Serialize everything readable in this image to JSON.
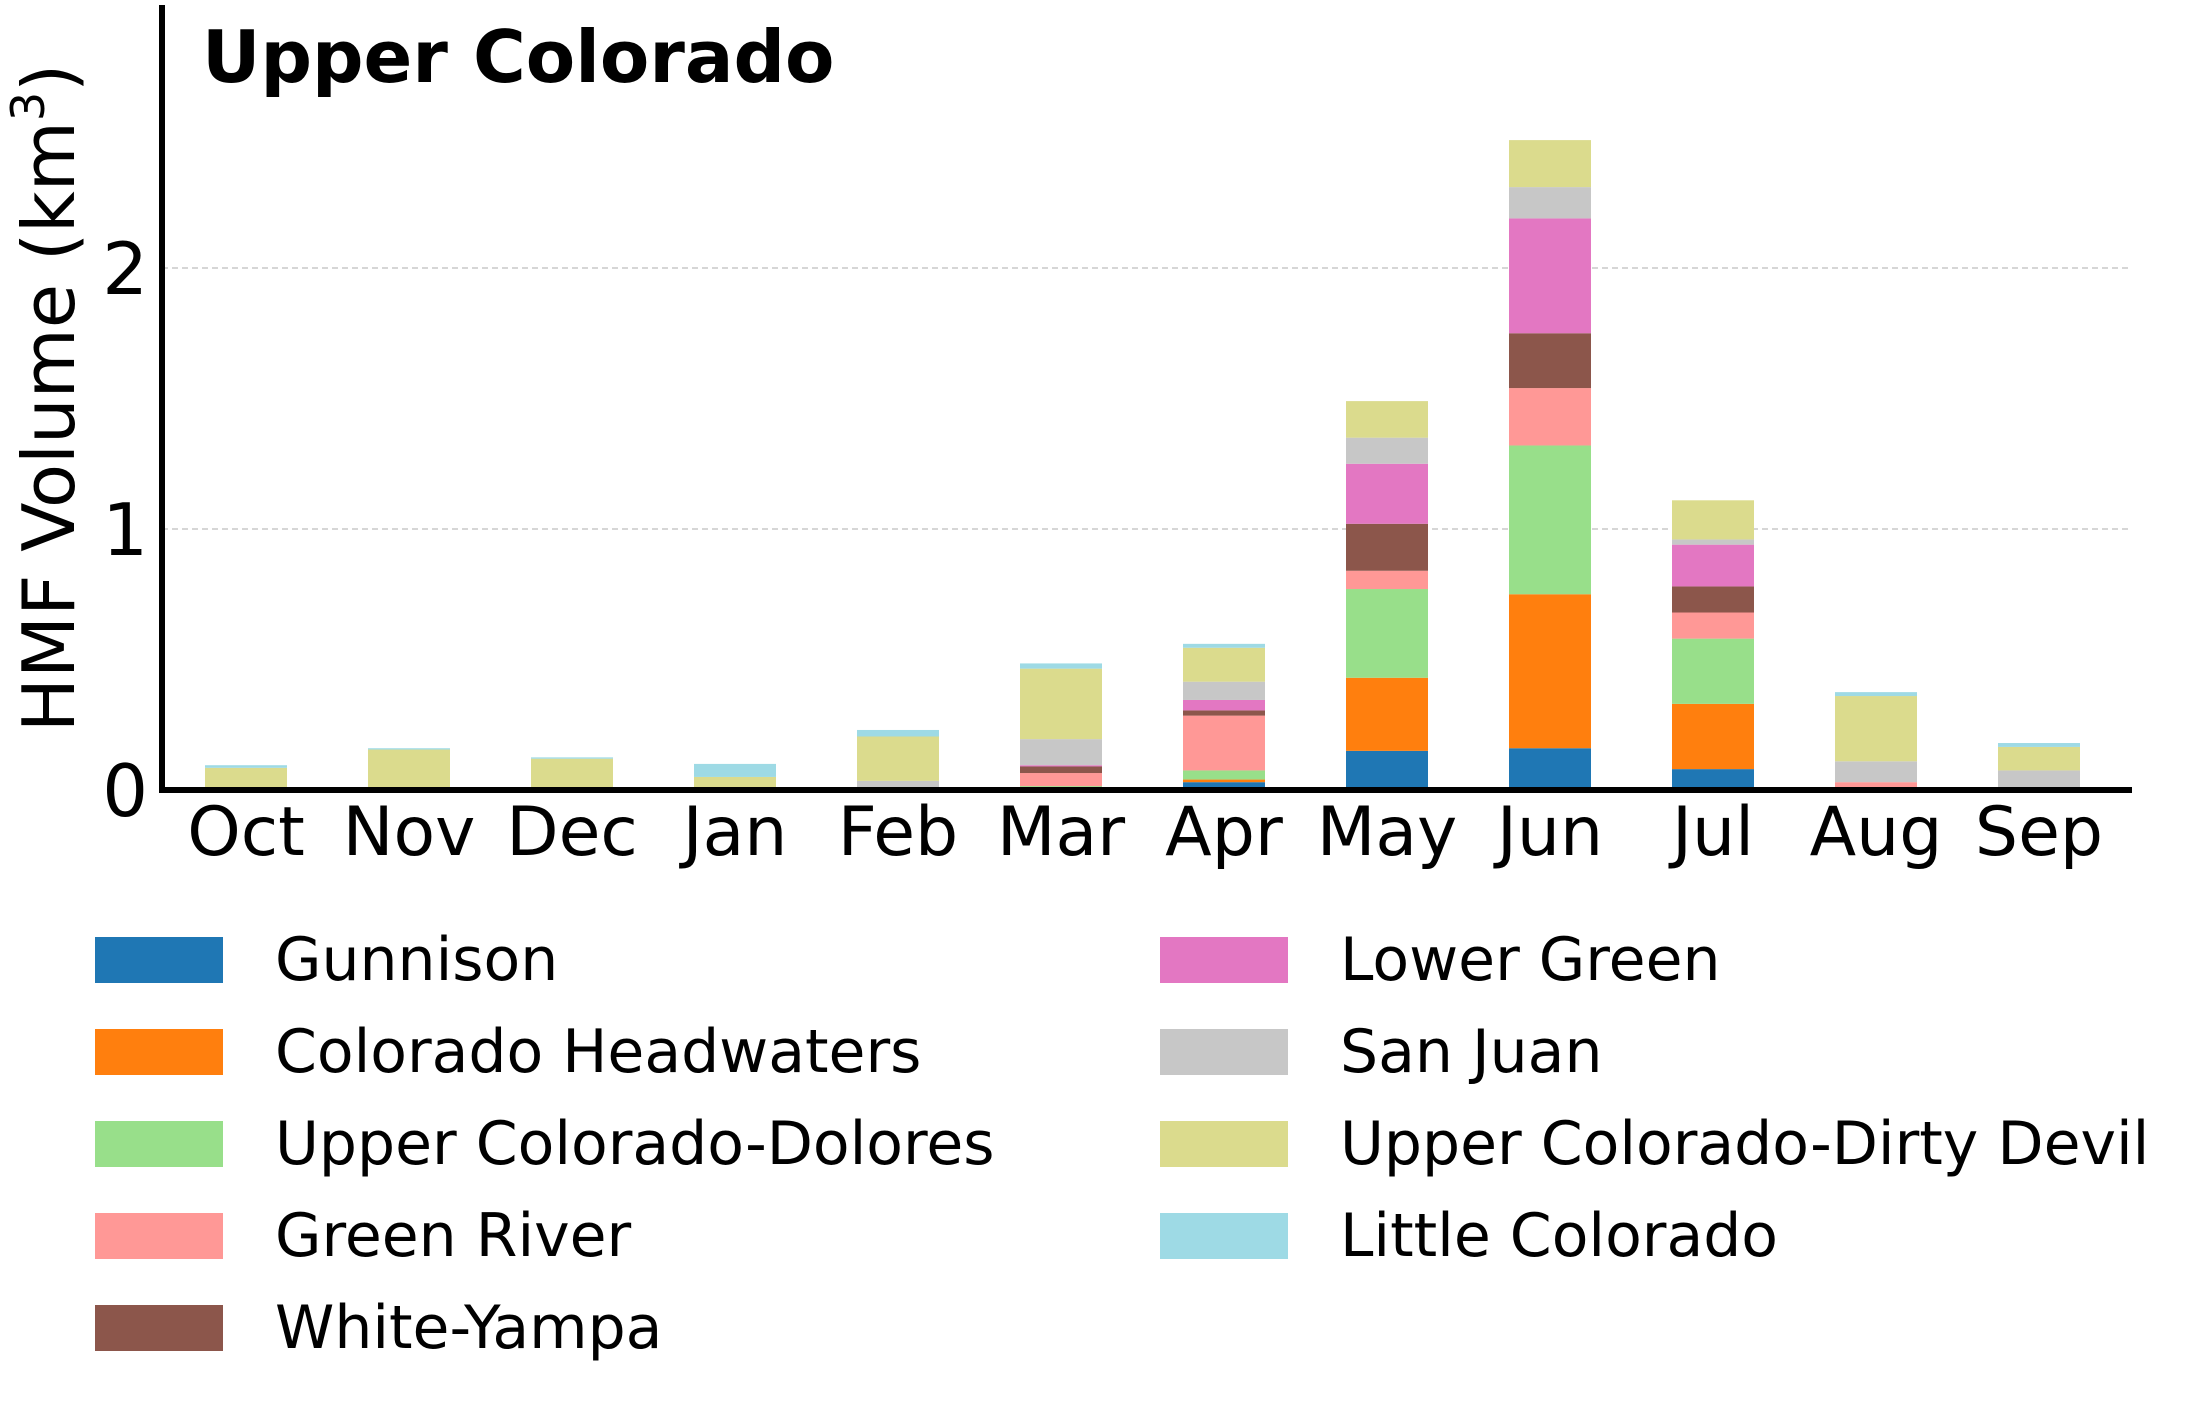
{
  "chart_data": {
    "type": "bar",
    "stacked": true,
    "title": "Upper Colorado",
    "ylabel": "HMF Volume (km³)",
    "ylabel_base": "HMF Volume (km",
    "ylabel_sup": "3",
    "ylabel_end": ")",
    "xlabel": "",
    "ylim": [
      0,
      3.0
    ],
    "yticks": [
      0,
      1,
      2
    ],
    "ytick_labels": [
      "0",
      "1",
      "2"
    ],
    "grid": "horizontal dashed",
    "legend_placement": "below",
    "categories": [
      "Oct",
      "Nov",
      "Dec",
      "Jan",
      "Feb",
      "Mar",
      "Apr",
      "May",
      "Jun",
      "Jul",
      "Aug",
      "Sep"
    ],
    "series": [
      {
        "name": "Gunnison",
        "color": "#1f77b4",
        "values": [
          0,
          0,
          0,
          0,
          0,
          0.005,
          0.03,
          0.15,
          0.16,
          0.08,
          0,
          0
        ]
      },
      {
        "name": "Colorado Headwaters",
        "color": "#ff7f0e",
        "values": [
          0,
          0,
          0,
          0,
          0,
          0.005,
          0.01,
          0.28,
          0.59,
          0.25,
          0,
          0
        ]
      },
      {
        "name": "Upper Colorado-Dolores",
        "color": "#98df8a",
        "values": [
          0,
          0,
          0,
          0,
          0,
          0.005,
          0.035,
          0.34,
          0.57,
          0.25,
          0,
          0
        ]
      },
      {
        "name": "Green River",
        "color": "#ff9896",
        "values": [
          0,
          0,
          0,
          0,
          0.005,
          0.05,
          0.21,
          0.07,
          0.22,
          0.1,
          0.03,
          0.005
        ]
      },
      {
        "name": "White-Yampa",
        "color": "#8c564b",
        "values": [
          0,
          0,
          0,
          0,
          0,
          0.025,
          0.02,
          0.18,
          0.21,
          0.1,
          0,
          0
        ]
      },
      {
        "name": "Lower Green",
        "color": "#e377c2",
        "values": [
          0,
          0,
          0,
          0,
          0,
          0.005,
          0.04,
          0.23,
          0.44,
          0.16,
          0,
          0
        ]
      },
      {
        "name": "San Juan",
        "color": "#c7c7c7",
        "values": [
          0,
          0,
          0,
          0.01,
          0.03,
          0.1,
          0.07,
          0.1,
          0.12,
          0.02,
          0.08,
          0.07
        ]
      },
      {
        "name": "Upper Colorado-Dirty Devil",
        "color": "#dbdb8d",
        "values": [
          0.085,
          0.155,
          0.12,
          0.04,
          0.17,
          0.27,
          0.13,
          0.14,
          0.18,
          0.15,
          0.25,
          0.09
        ]
      },
      {
        "name": "Little Colorado",
        "color": "#9edae5",
        "values": [
          0.01,
          0.005,
          0.005,
          0.05,
          0.025,
          0.02,
          0.015,
          0,
          0,
          0,
          0.015,
          0.015
        ]
      }
    ]
  }
}
